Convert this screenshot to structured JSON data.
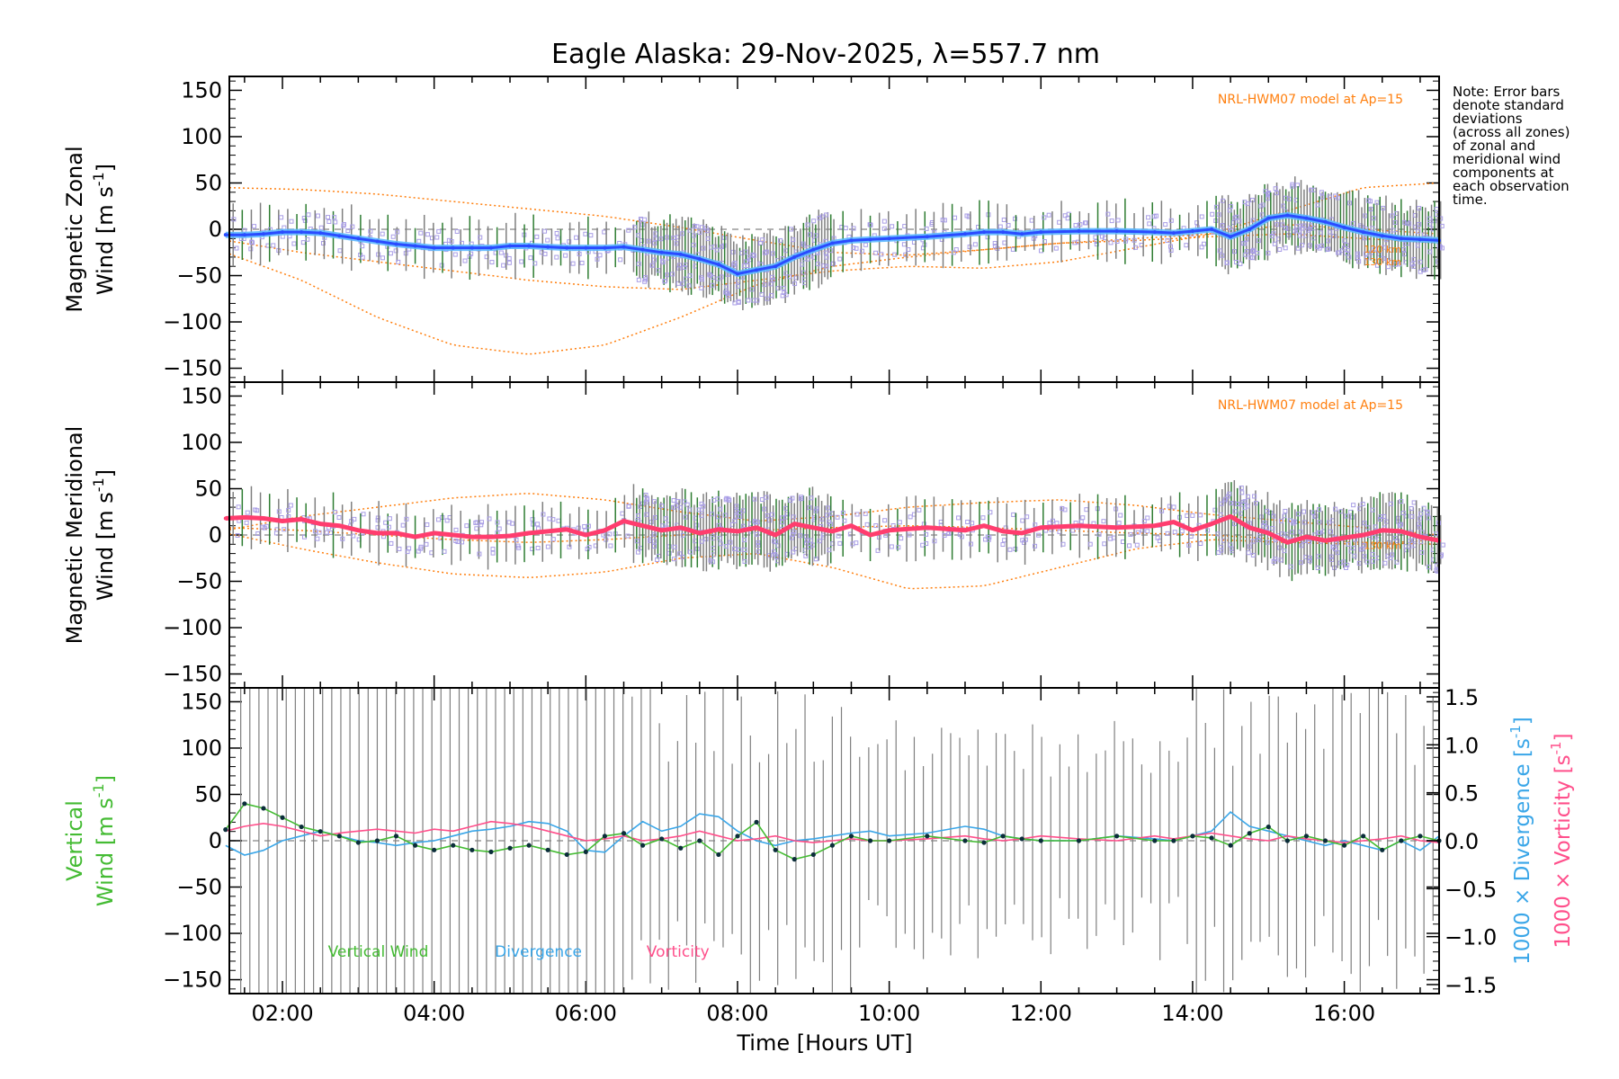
{
  "title": "Eagle Alaska: 29-Nov-2025, λ=557.7 nm",
  "note_lines": [
    "Note: Error bars",
    "denote standard",
    "deviations",
    "(across all zones)",
    "of zonal and",
    "meridional wind",
    "components at",
    "each observation",
    "time."
  ],
  "colors": {
    "model": "#ff7f0e",
    "obs_scatter": "#a99ee6",
    "zonal_mean": "#2a4bff",
    "zonal_mean_light": "#5cb8ff",
    "meridional_mean": "#ff3d6e",
    "vertical": "#44bb33",
    "divergence": "#3aa6e8",
    "vorticity": "#ff4f8b",
    "errorbar": "#7f7f7f"
  },
  "chart_data": [
    {
      "type": "line",
      "panel": "zonal",
      "ylabel_line1": "Magnetic Zonal",
      "ylabel_line2": "Wind [m s",
      "ylabel_sup": "-1",
      "ylabel_close": "]",
      "ylim": [
        -165,
        165
      ],
      "yticks": [
        150,
        100,
        50,
        0,
        -50,
        -100,
        -150
      ],
      "model_label": "NRL-HWM07 model at Ap=15",
      "altitude_labels": [
        "120 km",
        "130 km"
      ],
      "mean_wind": {
        "x": [
          1.25,
          1.5,
          1.75,
          2.0,
          2.25,
          2.5,
          2.75,
          3.0,
          3.25,
          3.5,
          3.75,
          4.0,
          4.25,
          4.5,
          4.75,
          5.0,
          5.25,
          5.5,
          5.75,
          6.0,
          6.25,
          6.5,
          6.75,
          7.0,
          7.25,
          7.5,
          7.75,
          8.0,
          8.25,
          8.5,
          8.75,
          9.0,
          9.25,
          9.5,
          9.75,
          10.0,
          10.5,
          11.0,
          11.25,
          11.5,
          11.75,
          12.0,
          12.5,
          13.0,
          13.5,
          13.75,
          14.0,
          14.25,
          14.5,
          14.75,
          15.0,
          15.25,
          15.5,
          15.75,
          16.0,
          16.25,
          16.5,
          16.75,
          17.0,
          17.25
        ],
        "y": [
          -6,
          -6,
          -5,
          -3,
          -3,
          -4,
          -7,
          -10,
          -13,
          -16,
          -18,
          -20,
          -20,
          -20,
          -20,
          -18,
          -18,
          -19,
          -20,
          -20,
          -20,
          -19,
          -22,
          -25,
          -27,
          -32,
          -38,
          -48,
          -44,
          -40,
          -30,
          -22,
          -15,
          -12,
          -11,
          -10,
          -8,
          -5,
          -3,
          -3,
          -5,
          -3,
          -2,
          -2,
          -3,
          -4,
          -2,
          0,
          -8,
          0,
          12,
          15,
          12,
          8,
          2,
          -3,
          -7,
          -10,
          -11,
          -12
        ]
      },
      "model_curves": [
        {
          "x": [
            1.25,
            2.25,
            3.25,
            4.25,
            5.25,
            6.25,
            7.25,
            8.25,
            9.25,
            10.25,
            11.25,
            12.25,
            13.25,
            14.25,
            15.25,
            16.25,
            17.25
          ],
          "y": [
            45,
            43,
            38,
            30,
            22,
            14,
            2,
            -12,
            -25,
            -28,
            -22,
            -15,
            -10,
            -5,
            20,
            45,
            50
          ]
        },
        {
          "x": [
            1.25,
            2.25,
            3.25,
            4.25,
            5.25,
            6.25,
            7.25,
            8.25,
            9.25,
            10.25,
            11.25,
            12.25,
            13.25,
            14.25,
            15.25,
            16.25,
            17.25
          ],
          "y": [
            -25,
            -55,
            -95,
            -125,
            -135,
            -125,
            -95,
            -60,
            -40,
            -30,
            -22,
            -15,
            -12,
            -8,
            -5,
            -10,
            -15
          ]
        },
        {
          "x": [
            1.25,
            2.25,
            3.25,
            4.25,
            5.25,
            6.25,
            7.25,
            8.25,
            9.25,
            10.25,
            11.25,
            12.25,
            13.25,
            14.25,
            15.25,
            16.25,
            17.25
          ],
          "y": [
            -12,
            -25,
            -35,
            -45,
            -55,
            -62,
            -65,
            -55,
            -45,
            -40,
            -42,
            -35,
            -20,
            -5,
            5,
            0,
            -5
          ]
        }
      ]
    },
    {
      "type": "line",
      "panel": "meridional",
      "ylabel_line1": "Magnetic Meridional",
      "ylabel_line2": "Wind [m s",
      "ylabel_sup": "-1",
      "ylabel_close": "]",
      "ylim": [
        -165,
        165
      ],
      "yticks": [
        150,
        100,
        50,
        0,
        -50,
        -100,
        -150
      ],
      "model_label": "NRL-HWM07 model at Ap=15",
      "altitude_labels": [
        "130 km"
      ],
      "mean_wind": {
        "x": [
          1.25,
          1.5,
          1.75,
          2.0,
          2.25,
          2.5,
          2.75,
          3.0,
          3.25,
          3.5,
          3.75,
          4.0,
          4.25,
          4.5,
          4.75,
          5.0,
          5.25,
          5.5,
          5.75,
          6.0,
          6.25,
          6.5,
          6.75,
          7.0,
          7.25,
          7.5,
          7.75,
          8.0,
          8.25,
          8.5,
          8.75,
          9.0,
          9.25,
          9.5,
          9.75,
          10.0,
          10.5,
          11.0,
          11.25,
          11.5,
          11.75,
          12.0,
          12.5,
          13.0,
          13.5,
          13.75,
          14.0,
          14.25,
          14.5,
          14.75,
          15.0,
          15.25,
          15.5,
          15.75,
          16.0,
          16.25,
          16.5,
          16.75,
          17.0,
          17.25
        ],
        "y": [
          18,
          19,
          18,
          15,
          17,
          12,
          10,
          5,
          2,
          2,
          -2,
          2,
          0,
          -2,
          -2,
          -1,
          2,
          4,
          6,
          0,
          5,
          15,
          10,
          5,
          8,
          2,
          6,
          4,
          8,
          0,
          12,
          8,
          4,
          10,
          0,
          5,
          8,
          5,
          10,
          4,
          2,
          8,
          10,
          8,
          10,
          14,
          5,
          12,
          20,
          8,
          2,
          -8,
          -2,
          -6,
          -3,
          0,
          5,
          4,
          -2,
          -6
        ]
      },
      "model_curves": [
        {
          "x": [
            1.25,
            2.25,
            3.25,
            4.25,
            5.25,
            6.25,
            7.25,
            8.25,
            9.25,
            10.25,
            11.25,
            12.25,
            13.25,
            14.25,
            15.25,
            16.25,
            17.25
          ],
          "y": [
            5,
            20,
            30,
            40,
            45,
            38,
            25,
            15,
            20,
            30,
            35,
            38,
            32,
            22,
            15,
            8,
            0
          ]
        },
        {
          "x": [
            1.25,
            2.25,
            3.25,
            4.25,
            5.25,
            6.25,
            7.25,
            8.25,
            9.25,
            10.25,
            11.25,
            12.25,
            13.25,
            14.25,
            15.25,
            16.25,
            17.25
          ],
          "y": [
            2,
            -15,
            -30,
            -42,
            -46,
            -40,
            -25,
            -20,
            -35,
            -58,
            -55,
            -35,
            -15,
            -5,
            -8,
            -10,
            -5
          ]
        },
        {
          "x": [
            1.25,
            2.25,
            3.25,
            4.25,
            5.25,
            6.25,
            7.25,
            8.25,
            9.25,
            10.25,
            11.25,
            12.25,
            13.25,
            14.25,
            15.25,
            16.25,
            17.25
          ],
          "y": [
            8,
            5,
            0,
            -5,
            -8,
            -5,
            0,
            5,
            8,
            10,
            8,
            5,
            2,
            0,
            -5,
            -8,
            -10
          ]
        }
      ]
    },
    {
      "type": "line",
      "panel": "vertical",
      "ylabel_line1": "Vertical",
      "ylabel_line2": "Wind [m s",
      "ylabel_sup": "-1",
      "ylabel_close": "]",
      "ylim": [
        -165,
        165
      ],
      "yticks": [
        150,
        100,
        50,
        0,
        -50,
        -100,
        -150
      ],
      "right_ylim": [
        -1.5,
        1.5
      ],
      "right_yticks": [
        "1.5",
        "1.0",
        "0.5",
        "0.0",
        "−0.5",
        "−1.0",
        "−1.5"
      ],
      "right_ylabel_div": "1000 × Divergence [s",
      "right_ylabel_vort": "1000 × Vorticity [s",
      "right_ylabel_sup": "-1",
      "right_ylabel_close": "]",
      "legend": [
        "Vertical Wind",
        "Divergence",
        "Vorticity"
      ],
      "vertical_wind": {
        "x": [
          1.25,
          1.5,
          1.75,
          2.0,
          2.25,
          2.5,
          2.75,
          3.0,
          3.25,
          3.5,
          3.75,
          4.0,
          4.25,
          4.5,
          4.75,
          5.0,
          5.25,
          5.5,
          5.75,
          6.0,
          6.25,
          6.5,
          6.75,
          7.0,
          7.25,
          7.5,
          7.75,
          8.0,
          8.25,
          8.5,
          8.75,
          9.0,
          9.25,
          9.5,
          9.75,
          10.0,
          10.5,
          11.0,
          11.25,
          11.5,
          11.75,
          12.0,
          12.5,
          13.0,
          13.5,
          13.75,
          14.0,
          14.25,
          14.5,
          14.75,
          15.0,
          15.25,
          15.5,
          15.75,
          16.0,
          16.25,
          16.5,
          16.75,
          17.0,
          17.25
        ],
        "y": [
          12,
          40,
          35,
          25,
          15,
          10,
          5,
          -2,
          0,
          5,
          -5,
          -10,
          -5,
          -10,
          -12,
          -8,
          -5,
          -10,
          -15,
          -12,
          5,
          8,
          -5,
          2,
          -8,
          0,
          -15,
          5,
          20,
          -10,
          -20,
          -15,
          -5,
          5,
          0,
          0,
          5,
          0,
          -2,
          5,
          2,
          0,
          0,
          5,
          0,
          0,
          5,
          3,
          -5,
          8,
          15,
          0,
          5,
          0,
          -5,
          5,
          -10,
          0,
          5,
          0
        ]
      },
      "divergence": {
        "x": [
          1.25,
          1.5,
          1.75,
          2.0,
          2.25,
          2.5,
          2.75,
          3.0,
          3.25,
          3.5,
          3.75,
          4.0,
          4.25,
          4.5,
          4.75,
          5.0,
          5.25,
          5.5,
          5.75,
          6.0,
          6.25,
          6.5,
          6.75,
          7.0,
          7.25,
          7.5,
          7.75,
          8.0,
          8.25,
          8.5,
          8.75,
          9.0,
          9.25,
          9.5,
          9.75,
          10.0,
          10.5,
          11.0,
          11.25,
          11.5,
          11.75,
          12.0,
          12.5,
          13.0,
          13.5,
          13.75,
          14.0,
          14.25,
          14.5,
          14.75,
          15.0,
          15.25,
          15.5,
          15.75,
          16.0,
          16.25,
          16.5,
          16.75,
          17.0,
          17.25
        ],
        "y": [
          -0.05,
          -0.15,
          -0.1,
          0.0,
          0.05,
          0.1,
          0.05,
          0.0,
          -0.02,
          -0.05,
          -0.02,
          0.0,
          0.05,
          0.1,
          0.12,
          0.15,
          0.2,
          0.18,
          0.1,
          -0.1,
          -0.12,
          0.05,
          0.2,
          0.1,
          0.15,
          0.28,
          0.25,
          0.1,
          0.0,
          -0.05,
          0.0,
          0.02,
          0.05,
          0.08,
          0.1,
          0.05,
          0.08,
          0.15,
          0.12,
          0.05,
          0.02,
          0.0,
          0.0,
          0.05,
          0.02,
          0.0,
          0.05,
          0.1,
          0.3,
          0.15,
          0.1,
          0.05,
          0.0,
          -0.05,
          0.0,
          -0.05,
          -0.1,
          0.0,
          -0.1,
          0.05
        ]
      },
      "vorticity": {
        "x": [
          1.25,
          1.5,
          1.75,
          2.0,
          2.25,
          2.5,
          2.75,
          3.0,
          3.25,
          3.5,
          3.75,
          4.0,
          4.25,
          4.5,
          4.75,
          5.0,
          5.25,
          5.5,
          5.75,
          6.0,
          6.25,
          6.5,
          6.75,
          7.0,
          7.25,
          7.5,
          7.75,
          8.0,
          8.25,
          8.5,
          8.75,
          9.0,
          9.25,
          9.5,
          9.75,
          10.0,
          10.5,
          11.0,
          11.25,
          11.5,
          11.75,
          12.0,
          12.5,
          13.0,
          13.5,
          13.75,
          14.0,
          14.25,
          14.5,
          14.75,
          15.0,
          15.25,
          15.5,
          15.75,
          16.0,
          16.25,
          16.5,
          16.75,
          17.0,
          17.25
        ],
        "y": [
          0.1,
          0.15,
          0.18,
          0.15,
          0.1,
          0.05,
          0.08,
          0.1,
          0.12,
          0.1,
          0.08,
          0.12,
          0.1,
          0.15,
          0.2,
          0.18,
          0.15,
          0.1,
          0.05,
          0.0,
          0.02,
          0.05,
          0.0,
          0.02,
          0.05,
          0.1,
          0.05,
          0.0,
          0.02,
          0.05,
          0.0,
          -0.02,
          0.0,
          0.02,
          0.0,
          0.0,
          0.02,
          0.05,
          0.02,
          0.0,
          0.02,
          0.05,
          0.02,
          0.0,
          0.05,
          0.02,
          0.05,
          0.08,
          0.05,
          0.02,
          0.0,
          0.05,
          0.02,
          0.0,
          -0.02,
          0.0,
          0.02,
          0.05,
          0.0,
          -0.02
        ]
      }
    }
  ],
  "x_axis": {
    "xlim": [
      1.3,
      17.25
    ],
    "ticks": [
      2,
      4,
      6,
      8,
      10,
      12,
      14,
      16
    ],
    "tick_labels": [
      "02:00",
      "04:00",
      "06:00",
      "08:00",
      "10:00",
      "12:00",
      "14:00",
      "16:00"
    ],
    "xlabel": "Time [Hours UT]"
  }
}
